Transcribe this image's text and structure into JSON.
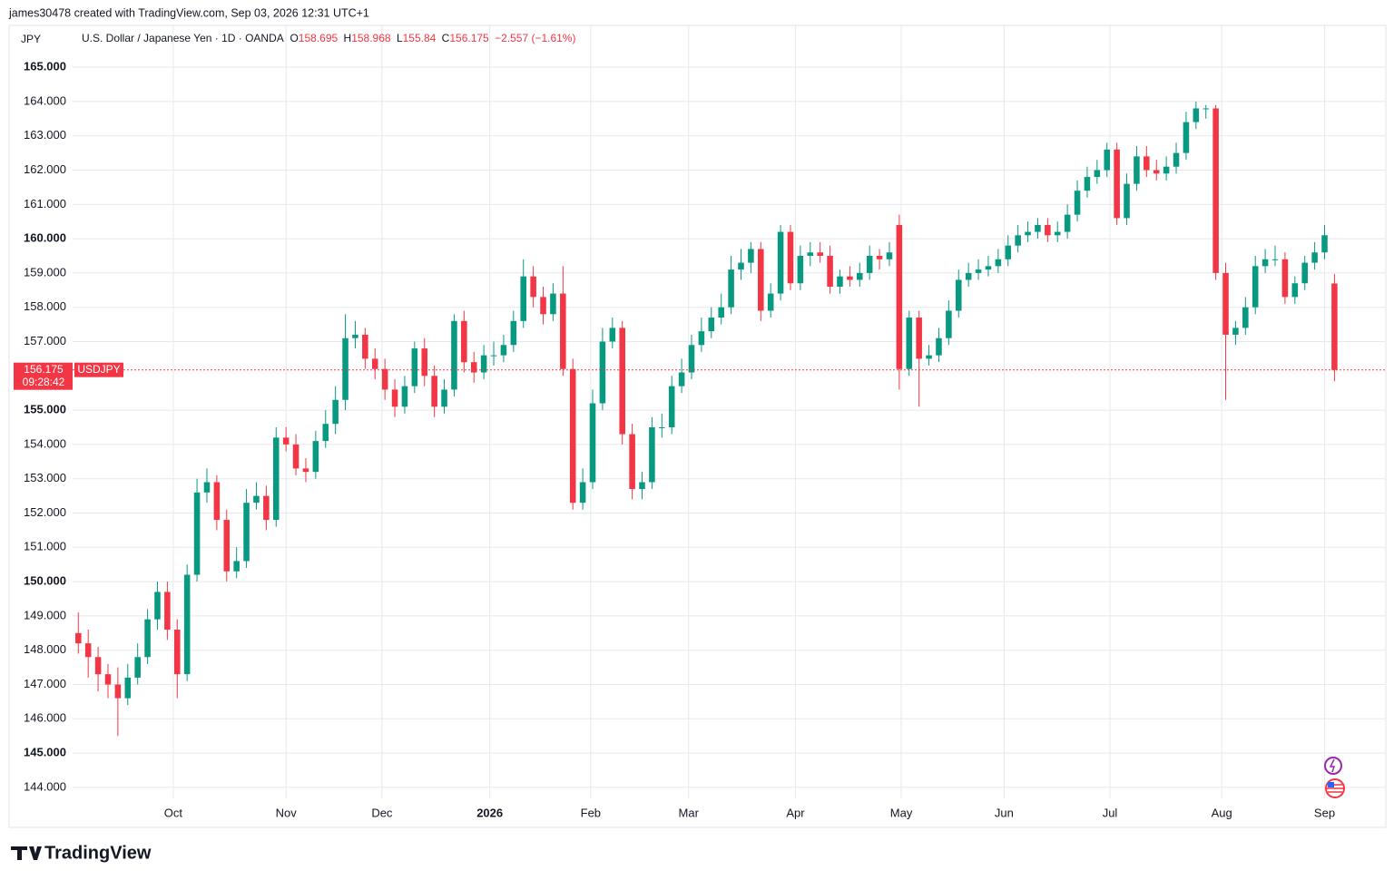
{
  "header": "james30478 created with TradingView.com, Sep 03, 2026 12:31 UTC+1",
  "logo": "TradingView",
  "chart_data": {
    "type": "candlestick",
    "symbol_short": "JPY",
    "title": "U.S. Dollar / Japanese Yen · 1D · OANDA",
    "ohlc_letters": [
      "O",
      "H",
      "L",
      "C"
    ],
    "change_label": "−2.557 (−1.61%)",
    "ticker": "USDJPY",
    "countdown": "09:28:42",
    "up_color": "#089981",
    "down_color": "#f23645",
    "xlim": [
      -7,
      131
    ],
    "xticks": [
      {
        "value": 9.6,
        "label": "Oct"
      },
      {
        "value": 21.0,
        "label": "Nov"
      },
      {
        "value": 30.7,
        "label": "Dec"
      },
      {
        "value": 41.6,
        "label": "2026"
      },
      {
        "value": 51.8,
        "label": "Feb"
      },
      {
        "value": 61.7,
        "label": "Mar"
      },
      {
        "value": 72.5,
        "label": "Apr"
      },
      {
        "value": 83.2,
        "label": "May"
      },
      {
        "value": 93.6,
        "label": "Jun"
      },
      {
        "value": 104.3,
        "label": "Jul"
      },
      {
        "value": 115.6,
        "label": "Aug"
      },
      {
        "value": 126.0,
        "label": "Sep"
      }
    ],
    "ylim": [
      143.68,
      166.22
    ],
    "yticks": [
      {
        "value": 144,
        "label": "144.000"
      },
      {
        "value": 145,
        "label": "145.000"
      },
      {
        "value": 146,
        "label": "146.000"
      },
      {
        "value": 147,
        "label": "147.000"
      },
      {
        "value": 148,
        "label": "148.000"
      },
      {
        "value": 149,
        "label": "149.000"
      },
      {
        "value": 150,
        "label": "150.000"
      },
      {
        "value": 151,
        "label": "151.000"
      },
      {
        "value": 152,
        "label": "152.000"
      },
      {
        "value": 153,
        "label": "153.000"
      },
      {
        "value": 154,
        "label": "154.000"
      },
      {
        "value": 155,
        "label": "155.000"
      },
      {
        "value": 157,
        "label": "157.000"
      },
      {
        "value": 158,
        "label": "158.000"
      },
      {
        "value": 159,
        "label": "159.000"
      },
      {
        "value": 160,
        "label": "160.000"
      },
      {
        "value": 161,
        "label": "161.000"
      },
      {
        "value": 162,
        "label": "162.000"
      },
      {
        "value": 163,
        "label": "163.000"
      },
      {
        "value": 164,
        "label": "164.000"
      },
      {
        "value": 165,
        "label": "165.000"
      }
    ],
    "grid": true,
    "open": [
      148.5,
      148.2,
      147.8,
      147.3,
      147.0,
      146.6,
      147.2,
      147.8,
      148.9,
      149.7,
      148.6,
      147.3,
      150.2,
      152.6,
      152.9,
      151.8,
      150.3,
      150.6,
      152.3,
      152.5,
      151.8,
      154.2,
      154.0,
      153.3,
      153.2,
      154.1,
      154.6,
      155.3,
      157.1,
      157.2,
      156.5,
      156.2,
      155.6,
      155.1,
      155.7,
      156.8,
      156.0,
      155.1,
      155.6,
      157.6,
      156.4,
      156.1,
      156.6,
      156.6,
      156.9,
      157.6,
      158.9,
      158.3,
      157.8,
      158.4,
      156.2,
      152.3,
      152.9,
      155.2,
      157.0,
      157.4,
      154.3,
      152.7,
      152.9,
      154.5,
      154.5,
      155.7,
      156.1,
      156.9,
      157.3,
      157.7,
      158.0,
      159.1,
      159.3,
      159.7,
      157.9,
      158.4,
      160.2,
      158.7,
      159.5,
      159.6,
      159.5,
      158.6,
      158.9,
      158.8,
      159.0,
      159.5,
      159.4,
      160.4,
      156.2,
      157.7,
      156.5,
      156.6,
      157.1,
      157.9,
      158.8,
      159.0,
      159.1,
      159.2,
      159.4,
      159.8,
      160.1,
      160.2,
      160.4,
      160.1,
      160.2,
      160.7,
      161.4,
      161.8,
      162.0,
      162.6,
      160.6,
      161.6,
      162.4,
      162.0,
      161.9,
      162.1,
      162.5,
      163.4,
      163.8,
      163.8,
      159.0,
      157.2,
      157.4,
      158.0,
      159.2,
      159.4,
      159.4,
      158.3,
      158.7,
      159.3,
      159.6,
      158.695
    ],
    "high": [
      149.1,
      148.6,
      148.1,
      147.6,
      147.5,
      147.6,
      148.2,
      149.2,
      150.0,
      150.0,
      148.9,
      150.5,
      153.0,
      153.3,
      153.1,
      152.1,
      151.0,
      152.7,
      152.9,
      152.8,
      154.5,
      154.5,
      154.3,
      153.6,
      154.4,
      155.0,
      155.7,
      157.8,
      157.6,
      157.4,
      156.8,
      156.5,
      155.9,
      156.0,
      157.0,
      157.1,
      156.3,
      155.9,
      157.8,
      157.9,
      156.7,
      156.9,
      157.0,
      157.2,
      157.9,
      159.4,
      159.2,
      158.6,
      158.7,
      159.2,
      156.5,
      153.3,
      155.6,
      157.4,
      157.7,
      157.6,
      154.6,
      153.2,
      154.8,
      154.9,
      156.0,
      156.5,
      157.2,
      157.7,
      158.0,
      158.4,
      159.5,
      159.7,
      159.9,
      159.9,
      158.7,
      160.4,
      160.4,
      159.8,
      159.9,
      159.9,
      159.8,
      159.1,
      159.2,
      159.3,
      159.8,
      159.7,
      159.9,
      160.7,
      157.9,
      157.9,
      156.9,
      157.4,
      158.2,
      159.1,
      159.3,
      159.4,
      159.5,
      159.7,
      160.1,
      160.4,
      160.5,
      160.6,
      160.6,
      160.5,
      161.0,
      161.7,
      162.1,
      162.3,
      162.8,
      162.8,
      161.9,
      162.7,
      162.7,
      162.3,
      162.4,
      162.8,
      163.7,
      164.0,
      163.9,
      163.9,
      159.3,
      157.6,
      158.3,
      159.5,
      159.7,
      159.8,
      159.6,
      158.9,
      159.5,
      159.9,
      160.4,
      158.968
    ],
    "low": [
      147.9,
      147.2,
      146.8,
      146.6,
      145.5,
      146.4,
      147.0,
      147.6,
      148.6,
      148.3,
      146.6,
      147.1,
      150.0,
      152.3,
      151.5,
      150.0,
      150.1,
      150.4,
      152.1,
      151.5,
      151.6,
      153.8,
      153.1,
      152.9,
      153.0,
      153.9,
      154.3,
      155.0,
      156.8,
      156.2,
      155.9,
      155.3,
      154.8,
      154.9,
      155.5,
      155.7,
      154.8,
      154.9,
      155.4,
      156.1,
      155.8,
      155.9,
      156.3,
      156.4,
      156.7,
      157.4,
      158.0,
      157.5,
      157.6,
      156.0,
      152.1,
      152.1,
      152.7,
      155.0,
      156.8,
      154.0,
      152.4,
      152.4,
      152.7,
      154.2,
      154.3,
      155.5,
      155.9,
      156.7,
      157.1,
      157.5,
      157.8,
      158.8,
      159.0,
      157.6,
      157.7,
      158.2,
      158.5,
      158.5,
      159.2,
      159.3,
      158.4,
      158.4,
      158.6,
      158.6,
      158.8,
      159.1,
      159.2,
      155.6,
      156.0,
      155.1,
      156.3,
      156.4,
      156.9,
      157.7,
      158.6,
      158.8,
      158.9,
      159.0,
      159.2,
      159.6,
      159.9,
      160.0,
      159.9,
      159.9,
      160.0,
      160.5,
      161.2,
      161.6,
      161.8,
      160.4,
      160.4,
      161.4,
      161.8,
      161.7,
      161.7,
      161.9,
      162.3,
      163.2,
      163.5,
      158.8,
      155.3,
      156.9,
      157.2,
      157.8,
      159.0,
      159.2,
      158.1,
      158.1,
      158.5,
      159.1,
      159.4,
      155.84
    ],
    "close": [
      148.2,
      147.8,
      147.3,
      147.0,
      146.6,
      147.2,
      147.8,
      148.9,
      149.7,
      148.6,
      147.3,
      150.2,
      152.6,
      152.9,
      151.8,
      150.3,
      150.6,
      152.3,
      152.5,
      151.8,
      154.2,
      154.0,
      153.3,
      153.2,
      154.1,
      154.6,
      155.3,
      157.1,
      157.2,
      156.5,
      156.2,
      155.6,
      155.1,
      155.7,
      156.8,
      156.0,
      155.1,
      155.6,
      157.6,
      156.4,
      156.1,
      156.6,
      156.6,
      156.9,
      157.6,
      158.9,
      158.3,
      157.8,
      158.4,
      156.2,
      152.3,
      152.9,
      155.2,
      157.0,
      157.4,
      154.3,
      152.7,
      152.9,
      154.5,
      154.5,
      155.7,
      156.1,
      156.9,
      157.3,
      157.7,
      158.0,
      159.1,
      159.3,
      159.7,
      157.9,
      158.4,
      160.2,
      158.7,
      159.5,
      159.6,
      159.5,
      158.6,
      158.9,
      158.8,
      159.0,
      159.5,
      159.4,
      159.6,
      156.2,
      157.7,
      156.5,
      156.6,
      157.1,
      157.9,
      158.8,
      159.0,
      159.1,
      159.2,
      159.4,
      159.8,
      160.1,
      160.2,
      160.4,
      160.1,
      160.2,
      160.7,
      161.4,
      161.8,
      162.0,
      162.6,
      160.6,
      161.6,
      162.4,
      162.0,
      161.9,
      162.1,
      162.5,
      163.4,
      163.8,
      163.8,
      159.0,
      157.2,
      157.4,
      158.0,
      159.2,
      159.4,
      159.4,
      158.3,
      158.7,
      159.3,
      159.6,
      160.1,
      156.175
    ]
  }
}
